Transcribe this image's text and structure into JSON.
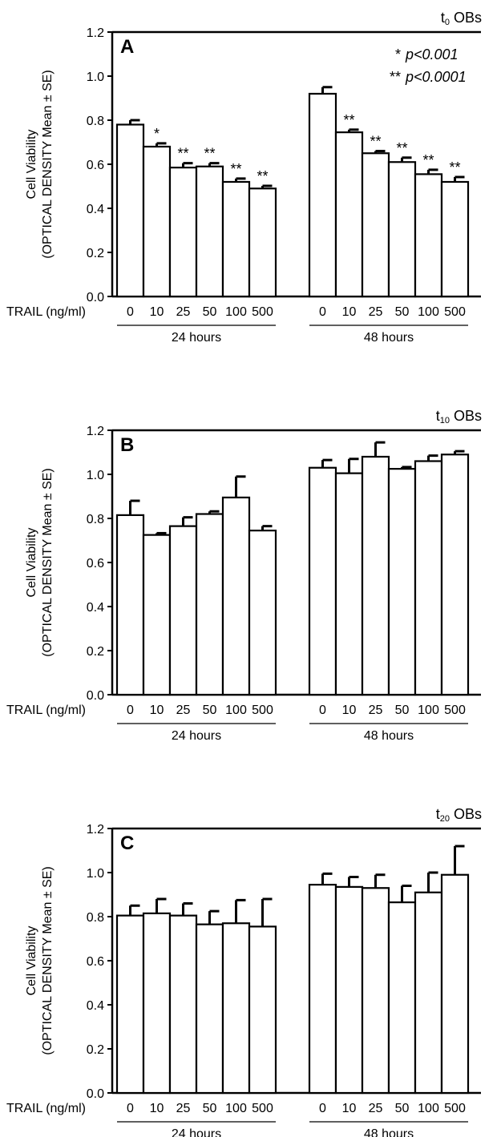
{
  "chart_data": [
    {
      "type": "bar",
      "panel_label": "A",
      "corner_label": {
        "sub": "0",
        "rest": "OBs"
      },
      "ylabel_line1": "Cell Viability",
      "ylabel_line2": "(OPTICAL DENSITY Mean ± SE)",
      "xlabel": "TRAIL (ng/ml)",
      "ylim": [
        0,
        1.2
      ],
      "yticks": [
        "0.0",
        "0.2",
        "0.4",
        "0.6",
        "0.8",
        "1.0",
        "1.2"
      ],
      "categories": [
        "0",
        "10",
        "25",
        "50",
        "100",
        "500"
      ],
      "legend_lines": [
        {
          "stars": "*",
          "text": "p<0.001"
        },
        {
          "stars": "**",
          "text": "p<0.0001"
        }
      ],
      "groups": [
        {
          "name": "24 hours",
          "values": [
            0.78,
            0.68,
            0.585,
            0.59,
            0.52,
            0.49
          ],
          "errors": [
            0.02,
            0.015,
            0.02,
            0.015,
            0.015,
            0.012
          ],
          "sig": [
            "",
            "*",
            "**",
            "**",
            "**",
            "**"
          ]
        },
        {
          "name": "48 hours",
          "values": [
            0.92,
            0.745,
            0.65,
            0.61,
            0.555,
            0.52
          ],
          "errors": [
            0.03,
            0.012,
            0.01,
            0.02,
            0.02,
            0.022
          ],
          "sig": [
            "",
            "**",
            "**",
            "**",
            "**",
            "**"
          ]
        }
      ]
    },
    {
      "type": "bar",
      "panel_label": "B",
      "corner_label": {
        "sub": "10",
        "rest": "OBs"
      },
      "ylabel_line1": "Cell Viability",
      "ylabel_line2": "(OPTICAL DENSITY Mean ± SE)",
      "xlabel": "TRAIL (ng/ml)",
      "ylim": [
        0,
        1.2
      ],
      "yticks": [
        "0.0",
        "0.2",
        "0.4",
        "0.6",
        "0.8",
        "1.0",
        "1.2"
      ],
      "categories": [
        "0",
        "10",
        "25",
        "50",
        "100",
        "500"
      ],
      "legend_lines": [],
      "groups": [
        {
          "name": "24 hours",
          "values": [
            0.815,
            0.725,
            0.765,
            0.82,
            0.895,
            0.745
          ],
          "errors": [
            0.065,
            0.008,
            0.04,
            0.012,
            0.095,
            0.02
          ],
          "sig": [
            "",
            "",
            "",
            "",
            "",
            ""
          ]
        },
        {
          "name": "48 hours",
          "values": [
            1.03,
            1.005,
            1.08,
            1.025,
            1.06,
            1.09
          ],
          "errors": [
            0.035,
            0.065,
            0.065,
            0.008,
            0.025,
            0.015
          ],
          "sig": [
            "",
            "",
            "",
            "",
            "",
            ""
          ]
        }
      ]
    },
    {
      "type": "bar",
      "panel_label": "C",
      "corner_label": {
        "sub": "20",
        "rest": "OBs"
      },
      "ylabel_line1": "Cell Viability",
      "ylabel_line2": "(OPTICAL DENSITY Mean ± SE)",
      "xlabel": "TRAIL (ng/ml)",
      "ylim": [
        0,
        1.2
      ],
      "yticks": [
        "0.0",
        "0.2",
        "0.4",
        "0.6",
        "0.8",
        "1.0",
        "1.2"
      ],
      "categories": [
        "0",
        "10",
        "25",
        "50",
        "100",
        "500"
      ],
      "legend_lines": [],
      "groups": [
        {
          "name": "24 hours",
          "values": [
            0.805,
            0.815,
            0.805,
            0.765,
            0.77,
            0.755
          ],
          "errors": [
            0.045,
            0.065,
            0.055,
            0.06,
            0.105,
            0.125
          ],
          "sig": [
            "",
            "",
            "",
            "",
            "",
            ""
          ]
        },
        {
          "name": "48 hours",
          "values": [
            0.945,
            0.935,
            0.93,
            0.865,
            0.91,
            0.99
          ],
          "errors": [
            0.05,
            0.045,
            0.06,
            0.075,
            0.09,
            0.13
          ],
          "sig": [
            "",
            "",
            "",
            "",
            "",
            ""
          ]
        }
      ]
    }
  ]
}
